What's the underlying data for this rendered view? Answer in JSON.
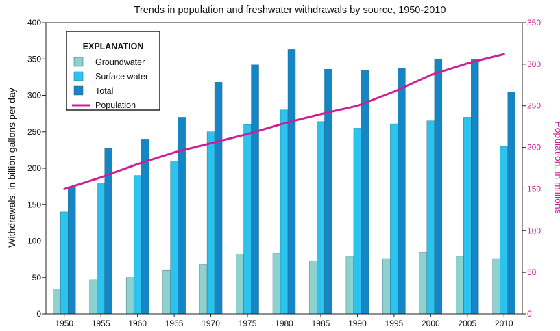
{
  "chart_data": {
    "type": "bar",
    "title": "Trends in population and freshwater withdrawals by source, 1950-2010",
    "categories": [
      "1950",
      "1955",
      "1960",
      "1965",
      "1970",
      "1975",
      "1980",
      "1985",
      "1990",
      "1995",
      "2000",
      "2005",
      "2010"
    ],
    "series": [
      {
        "name": "Groundwater",
        "type": "bar",
        "axis": "left",
        "values": [
          34,
          47,
          50,
          60,
          68,
          82,
          83,
          73,
          79,
          76,
          84,
          79,
          76
        ]
      },
      {
        "name": "Surface water",
        "type": "bar",
        "axis": "left",
        "values": [
          140,
          180,
          190,
          210,
          250,
          260,
          280,
          264,
          255,
          261,
          265,
          270,
          230
        ]
      },
      {
        "name": "Total",
        "type": "bar",
        "axis": "left",
        "values": [
          174,
          227,
          240,
          270,
          318,
          342,
          363,
          336,
          334,
          337,
          349,
          349,
          305
        ]
      },
      {
        "name": "Population",
        "type": "line",
        "axis": "right",
        "values": [
          150,
          164,
          180,
          194,
          205,
          216,
          229,
          240,
          250,
          267,
          287,
          301,
          312
        ]
      }
    ],
    "ylabel": "Withdrawals, in billion gallons per day",
    "y2label": "Population, in millions",
    "ylim": [
      0,
      400
    ],
    "y2lim": [
      0,
      350
    ],
    "yticks": [
      0,
      50,
      100,
      150,
      200,
      250,
      300,
      350,
      400
    ],
    "y2ticks": [
      0,
      50,
      100,
      150,
      200,
      250,
      300,
      350
    ],
    "legend": {
      "title": "EXPLANATION",
      "position": "top-left"
    },
    "grid": false,
    "colors": {
      "Groundwater": "#8ed2cf",
      "Surface water": "#2cc3ee",
      "Total": "#1486c6",
      "Population": "#cc1f96",
      "right_axis": "#cc1f96"
    }
  }
}
